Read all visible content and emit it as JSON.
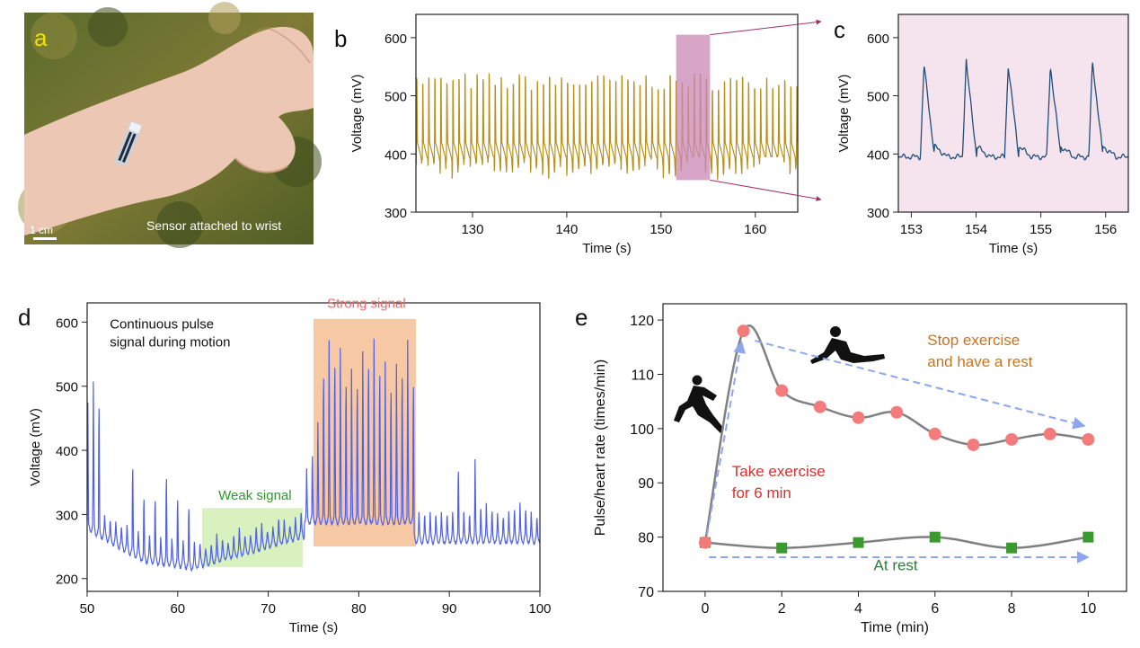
{
  "panels": {
    "a": {
      "letter": "a",
      "caption": "Sensor attached to wrist",
      "scale_label": "1 cm"
    },
    "b": {
      "letter": "b"
    },
    "c": {
      "letter": "c"
    },
    "d": {
      "letter": "d"
    },
    "e": {
      "letter": "e"
    }
  },
  "colors": {
    "trace_b": "#b8901c",
    "trace_c": "#1f4e79",
    "trace_d": "#5060e8",
    "highlight": "#c987b6",
    "panel_c_bg": "#f5e4ee",
    "strong_box": "#f6c9a4",
    "weak_box": "#d9f0bf",
    "exercise_marker": "#f47b7b",
    "rest_marker": "#3b9a2e",
    "arrow": "#8ea6f0",
    "fit_curve": "#808080"
  },
  "chart_data": [
    {
      "panel": "b",
      "type": "line",
      "xlabel": "Time (s)",
      "ylabel": "Voltage (mV)",
      "xlim": [
        124,
        164.5
      ],
      "ylim": [
        300,
        640
      ],
      "xticks": [
        130,
        140,
        150,
        160
      ],
      "yticks": [
        300,
        400,
        500,
        600
      ],
      "signal": {
        "pulse_period_s": 0.64,
        "baseline_mV": 395,
        "peak_mV_range": [
          540,
          575
        ],
        "trough_mV_range": [
          340,
          400
        ]
      },
      "highlight_x": [
        151.6,
        155.2
      ],
      "highlight_y": [
        355,
        605
      ],
      "grid": false
    },
    {
      "panel": "c",
      "type": "line",
      "xlabel": "Time (s)",
      "ylabel": "Voltage (mV)",
      "xlim": [
        152.8,
        156.35
      ],
      "ylim": [
        300,
        640
      ],
      "xticks": [
        153,
        154,
        155,
        156
      ],
      "yticks": [
        300,
        400,
        500,
        600
      ],
      "peaks_x": [
        153.2,
        153.85,
        154.5,
        155.15,
        155.8
      ],
      "peaks_mV": [
        563,
        568,
        562,
        561,
        570
      ],
      "baseline_mV": 395,
      "grid": false
    },
    {
      "panel": "d",
      "type": "line",
      "xlabel": "Time (s)",
      "ylabel": "Voltage (mV)",
      "xlim": [
        50,
        100
      ],
      "ylim": [
        180,
        630
      ],
      "xticks": [
        50,
        60,
        70,
        80,
        90,
        100
      ],
      "yticks": [
        200,
        300,
        400,
        500,
        600
      ],
      "annotations": [
        {
          "text": "Continuous pulse",
          "x": 52.5,
          "y": 590,
          "color": "#111111"
        },
        {
          "text": "signal during motion",
          "x": 52.5,
          "y": 562,
          "color": "#111111"
        },
        {
          "text": "Strong signal",
          "x": 76.5,
          "y": 622,
          "color": "#e86a6a"
        },
        {
          "text": "Weak signal",
          "x": 64.5,
          "y": 323,
          "color": "#2e9a2e"
        }
      ],
      "strong_region": {
        "x": [
          75,
          86.3
        ],
        "y": [
          250,
          605
        ]
      },
      "weak_region": {
        "x": [
          62.7,
          73.8
        ],
        "y": [
          218,
          310
        ]
      },
      "grid": false
    },
    {
      "panel": "e",
      "type": "scatter",
      "xlabel": "Time (min)",
      "ylabel": "Pulse/heart rate (times/min)",
      "xlim": [
        -1.1,
        11
      ],
      "ylim": [
        70,
        123
      ],
      "xticks": [
        0,
        2,
        4,
        6,
        8,
        10
      ],
      "yticks": [
        70,
        80,
        90,
        100,
        110,
        120
      ],
      "series": [
        {
          "x": [
            0,
            1,
            2,
            3,
            4,
            5,
            6,
            7,
            8,
            9,
            10
          ],
          "values": [
            79,
            118,
            107,
            104,
            102,
            103,
            99,
            97,
            98,
            99,
            98
          ],
          "marker": "circle"
        },
        {
          "x": [
            0,
            2,
            4,
            6,
            8,
            10
          ],
          "values": [
            79,
            78,
            79,
            80,
            78,
            80
          ],
          "marker": "square"
        }
      ],
      "annotations": [
        {
          "text": "Stop exercise",
          "x": 5.8,
          "y": 115.4,
          "color": "#c8741c"
        },
        {
          "text": "and have a rest",
          "x": 5.8,
          "y": 111.4,
          "color": "#c8741c"
        },
        {
          "text": "Take exercise",
          "x": 0.7,
          "y": 91.2,
          "color": "#e02d2d"
        },
        {
          "text": "for 6 min",
          "x": 0.7,
          "y": 87.2,
          "color": "#e02d2d"
        },
        {
          "text": "At rest",
          "x": 4.4,
          "y": 73.9,
          "color": "#2e7a3a"
        }
      ],
      "arrows": [
        {
          "from": [
            0.05,
            80.5
          ],
          "to": [
            0.95,
            116
          ]
        },
        {
          "from": [
            1.3,
            116.2
          ],
          "to": [
            9.9,
            100.5
          ]
        },
        {
          "from": [
            0.1,
            76.3
          ],
          "to": [
            10.0,
            76.3
          ]
        }
      ],
      "grid": false
    }
  ]
}
